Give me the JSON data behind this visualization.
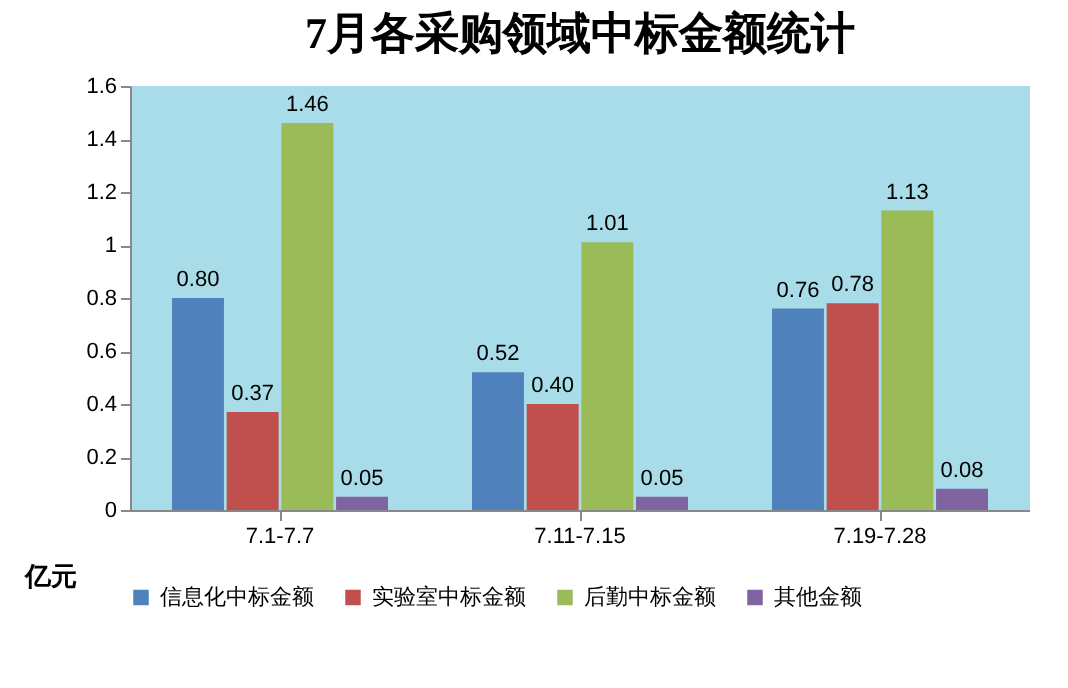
{
  "chart_data": {
    "type": "bar",
    "title": "7月各采购领域中标金额统计",
    "ylabel": "亿元",
    "categories": [
      "7.1-7.7",
      "7.11-7.15",
      "7.19-7.28"
    ],
    "series": [
      {
        "name": "信息化中标金额",
        "color": "#4f81bd",
        "values": [
          0.8,
          0.52,
          0.76
        ],
        "value_labels": [
          "0.80",
          "0.52",
          "0.76"
        ]
      },
      {
        "name": "实验室中标金额",
        "color": "#c0504d",
        "values": [
          0.37,
          0.4,
          0.78
        ],
        "value_labels": [
          "0.37",
          "0.40",
          "0.78"
        ]
      },
      {
        "name": "后勤中标金额",
        "color": "#9bbb59",
        "values": [
          1.46,
          1.01,
          1.13
        ],
        "value_labels": [
          "1.46",
          "1.01",
          "1.13"
        ]
      },
      {
        "name": "其他金额",
        "color": "#8064a2",
        "values": [
          0.05,
          0.05,
          0.08
        ],
        "value_labels": [
          "0.05",
          "0.05",
          "0.08"
        ]
      }
    ],
    "ylim": [
      0,
      1.6
    ],
    "yticks": [
      0,
      0.2,
      0.4,
      0.6,
      0.8,
      1,
      1.2,
      1.4,
      1.6
    ],
    "grid": false,
    "legend": "bottom"
  }
}
